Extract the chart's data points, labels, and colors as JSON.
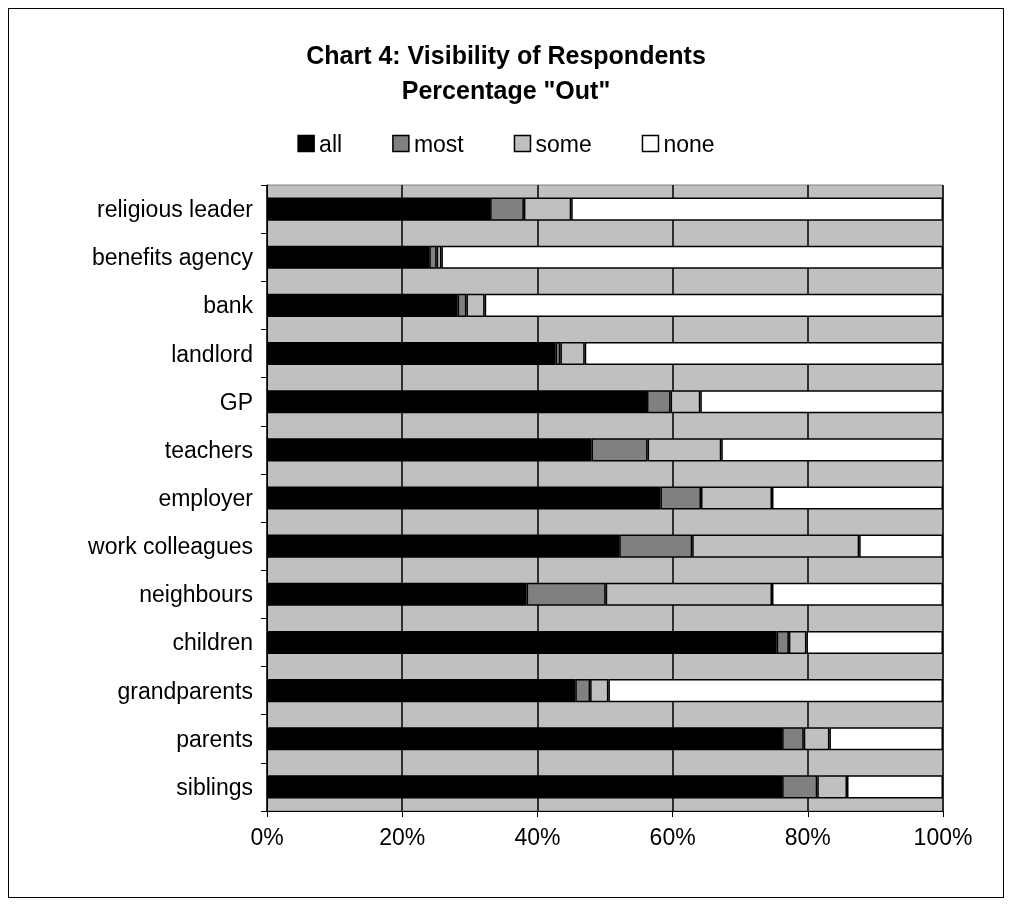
{
  "chart_data": {
    "type": "bar",
    "orientation": "horizontal",
    "stacked": true,
    "title": "Chart 4: Visibility of Respondents",
    "subtitle": "Percentage \"Out\"",
    "categories": [
      "religious leader",
      "benefits agency",
      "bank",
      "landlord",
      "GP",
      "teachers",
      "employer",
      "work colleagues",
      "neighbours",
      "children",
      "grandparents",
      "parents",
      "siblings"
    ],
    "series": [
      {
        "name": "all",
        "color": "#000000",
        "values": [
          33,
          24,
          28.2,
          42.7,
          56.2,
          48,
          58.2,
          52.1,
          38.4,
          75.4,
          45.6,
          76.2,
          76.2
        ]
      },
      {
        "name": "most",
        "color": "#808080",
        "values": [
          5,
          1.1,
          1.3,
          0.7,
          3.5,
          8.3,
          6,
          10.8,
          11.7,
          1.8,
          2.2,
          3.2,
          5.2
        ]
      },
      {
        "name": "some",
        "color": "#c0c0c0",
        "values": [
          7,
          0.7,
          2.7,
          3.6,
          4.4,
          10.9,
          10.5,
          24.7,
          24.6,
          2.6,
          2.7,
          3.8,
          4.4
        ]
      },
      {
        "name": "none",
        "color": "#ffffff",
        "values": [
          55,
          74.2,
          67.8,
          53,
          35.9,
          32.8,
          25.3,
          12.4,
          25.3,
          20.2,
          49.5,
          16.8,
          14.2
        ]
      }
    ],
    "xlim": [
      0,
      100
    ],
    "xticks": [
      {
        "value": 0,
        "label": "0%"
      },
      {
        "value": 20,
        "label": "20%"
      },
      {
        "value": 40,
        "label": "40%"
      },
      {
        "value": 60,
        "label": "60%"
      },
      {
        "value": 80,
        "label": "80%"
      },
      {
        "value": 100,
        "label": "100%"
      }
    ],
    "grid": "x",
    "legend": "top"
  }
}
